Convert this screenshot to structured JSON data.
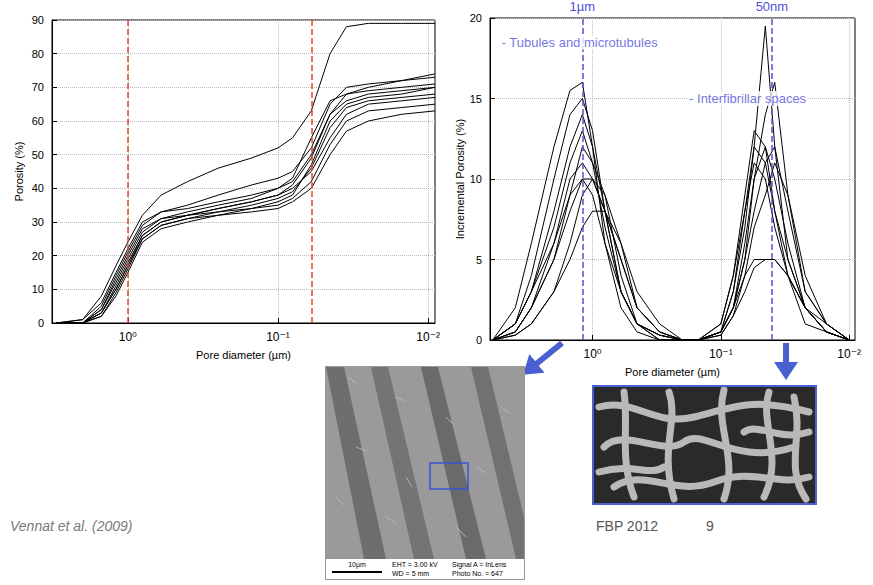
{
  "chart_data": [
    {
      "type": "line",
      "log": "x",
      "grid": true,
      "color": "#000000",
      "x_label": "Pore diameter (µm)",
      "y_label": "Porosity (%)",
      "xlim": [
        3.2,
        0.009
      ],
      "xticks": [
        {
          "value": 1,
          "label": "10⁰"
        },
        {
          "value": 0.1,
          "label": "10⁻¹"
        },
        {
          "value": 0.01,
          "label": "10⁻²"
        }
      ],
      "ylim": [
        0,
        90
      ],
      "yticks": [
        0,
        10,
        20,
        30,
        40,
        50,
        60,
        70,
        80,
        90
      ],
      "vlines": [
        {
          "x": 1,
          "color": "#e8432c",
          "line_style": "dashed"
        },
        {
          "x": 0.06,
          "color": "#e8432c",
          "line_style": "dashed"
        }
      ],
      "x": [
        3,
        2,
        1.5,
        1.2,
        1,
        0.8,
        0.6,
        0.4,
        0.25,
        0.15,
        0.1,
        0.08,
        0.06,
        0.045,
        0.035,
        0.025,
        0.015,
        0.009
      ],
      "series": [
        {
          "values": [
            0,
            1,
            8,
            17,
            24,
            32,
            38,
            42,
            46,
            49,
            52,
            55,
            63,
            80,
            88,
            89,
            89,
            89
          ]
        },
        {
          "values": [
            0,
            0,
            5,
            14,
            21,
            29,
            33,
            35,
            38,
            41,
            43,
            45,
            52,
            65,
            70,
            71,
            72,
            73
          ]
        },
        {
          "values": [
            0,
            0,
            4,
            12,
            19,
            27,
            31,
            33,
            35,
            37,
            40,
            43,
            55,
            66,
            68,
            69,
            70,
            71
          ]
        },
        {
          "values": [
            0,
            1,
            6,
            15,
            22,
            30,
            33,
            34,
            36,
            38,
            40,
            42,
            50,
            62,
            66,
            68,
            69,
            70
          ]
        },
        {
          "values": [
            0,
            0,
            3,
            10,
            17,
            25,
            29,
            31,
            33,
            35,
            37,
            39,
            46,
            58,
            64,
            66,
            67,
            68
          ]
        },
        {
          "values": [
            0,
            0,
            4,
            13,
            20,
            28,
            31,
            32,
            34,
            36,
            38,
            40,
            45,
            55,
            62,
            65,
            66,
            67
          ]
        },
        {
          "values": [
            0,
            0,
            2,
            8,
            15,
            24,
            28,
            30,
            32,
            34,
            35,
            37,
            42,
            53,
            60,
            63,
            64,
            65
          ]
        },
        {
          "values": [
            0,
            0,
            3,
            11,
            18,
            26,
            30,
            32,
            33,
            34,
            36,
            38,
            47,
            60,
            65,
            67,
            68,
            70
          ]
        },
        {
          "values": [
            0,
            0,
            2,
            9,
            16,
            25,
            29,
            31,
            32,
            33,
            34,
            36,
            40,
            50,
            57,
            60,
            62,
            63
          ]
        },
        {
          "values": [
            0,
            0,
            3,
            10,
            17,
            26,
            30,
            32,
            34,
            36,
            38,
            41,
            49,
            62,
            68,
            70,
            72,
            74
          ]
        }
      ]
    },
    {
      "type": "line",
      "log": "x",
      "grid": true,
      "color": "#000000",
      "x_label": "Pore diameter (µm)",
      "y_label": "Incremental Porosity (%)",
      "xlim": [
        6.3,
        0.009
      ],
      "xticks": [
        {
          "value": 1,
          "label": "10⁰"
        },
        {
          "value": 0.1,
          "label": "10⁻¹"
        },
        {
          "value": 0.01,
          "label": "10⁻²"
        }
      ],
      "ylim": [
        0,
        20
      ],
      "yticks": [
        0,
        5,
        10,
        15,
        20
      ],
      "vlines": [
        {
          "x": 1.2,
          "label": "1µm",
          "color": "#5050d8",
          "line_style": "dashed"
        },
        {
          "x": 0.04,
          "label": "50nm",
          "color": "#5050d8",
          "line_style": "dashed"
        }
      ],
      "annotations": [
        {
          "text": "- Tubules and microtubules",
          "x": 5.5,
          "y": 18.5,
          "color": "#5050d8"
        },
        {
          "text": "- Interfibrillar spaces",
          "x": 0.19,
          "y": 15,
          "color": "#5050d8"
        }
      ],
      "x": [
        6,
        4,
        3,
        2,
        1.5,
        1.2,
        1,
        0.8,
        0.6,
        0.45,
        0.3,
        0.2,
        0.15,
        0.1,
        0.08,
        0.065,
        0.055,
        0.045,
        0.038,
        0.03,
        0.022,
        0.015,
        0.01
      ],
      "series": [
        {
          "values": [
            0,
            2,
            6,
            12,
            15.5,
            16,
            12,
            6,
            2,
            0.5,
            0,
            0,
            0,
            0.5,
            3,
            7,
            12,
            19.5,
            12,
            5,
            2,
            0.5,
            0
          ]
        },
        {
          "values": [
            0,
            1,
            4,
            10,
            14,
            15,
            13,
            8,
            3,
            1,
            0,
            0,
            0,
            0.5,
            2,
            5,
            10,
            14,
            16,
            9,
            3,
            1,
            0
          ]
        },
        {
          "values": [
            0,
            1,
            3,
            8,
            12,
            14,
            12,
            8,
            3,
            1,
            0.3,
            0,
            0,
            1,
            4,
            9,
            13,
            12,
            8,
            4,
            1,
            0.5,
            0
          ]
        },
        {
          "values": [
            0,
            0.5,
            2,
            5,
            9,
            12,
            11,
            9,
            4,
            1,
            0.3,
            0,
            0,
            0.5,
            3,
            8,
            12,
            11,
            8,
            5,
            2,
            0.5,
            0
          ]
        },
        {
          "values": [
            0,
            0.5,
            2,
            6,
            10,
            11,
            10,
            8,
            5,
            2,
            0.5,
            0,
            0,
            0.5,
            2,
            6,
            10,
            12,
            10,
            6,
            2,
            0.5,
            0
          ]
        },
        {
          "values": [
            0,
            0.3,
            1,
            3,
            6,
            9,
            10,
            9,
            6,
            2,
            0.5,
            0,
            0,
            0.3,
            1.5,
            4,
            7,
            9,
            11,
            9,
            4,
            1,
            0
          ]
        },
        {
          "values": [
            0,
            0.5,
            2,
            5,
            8,
            10,
            10,
            8,
            5,
            2,
            0.5,
            0,
            0,
            1,
            4,
            8,
            11,
            10,
            7,
            4,
            2,
            0.5,
            0
          ]
        },
        {
          "values": [
            0,
            1,
            3,
            7,
            11,
            13,
            11,
            7,
            3,
            1,
            0.3,
            0,
            0,
            0.5,
            2,
            5,
            8,
            11,
            12,
            8,
            3,
            1,
            0
          ]
        },
        {
          "values": [
            0,
            0.3,
            1,
            3,
            5,
            7,
            8,
            8,
            6,
            3,
            1,
            0,
            0,
            0.5,
            2,
            4,
            5,
            5,
            5,
            4,
            2,
            1,
            0
          ]
        },
        {
          "values": [
            0,
            1,
            3,
            6,
            9,
            10,
            9,
            6,
            3,
            1,
            0,
            0,
            0,
            0.3,
            1.5,
            3,
            4.5,
            5,
            5,
            4,
            2,
            0.5,
            0
          ]
        }
      ]
    }
  ],
  "slide": {
    "citation": "Vennat et al. (2009)",
    "footer": "FBP 2012",
    "page": "9",
    "sem_image": {
      "scale_bar": "10µm",
      "info": [
        [
          "EHT = 3.00 kV",
          "WD = 5 mm"
        ],
        [
          "Signal A = InLens",
          "Photo No. = 647"
        ]
      ]
    }
  }
}
